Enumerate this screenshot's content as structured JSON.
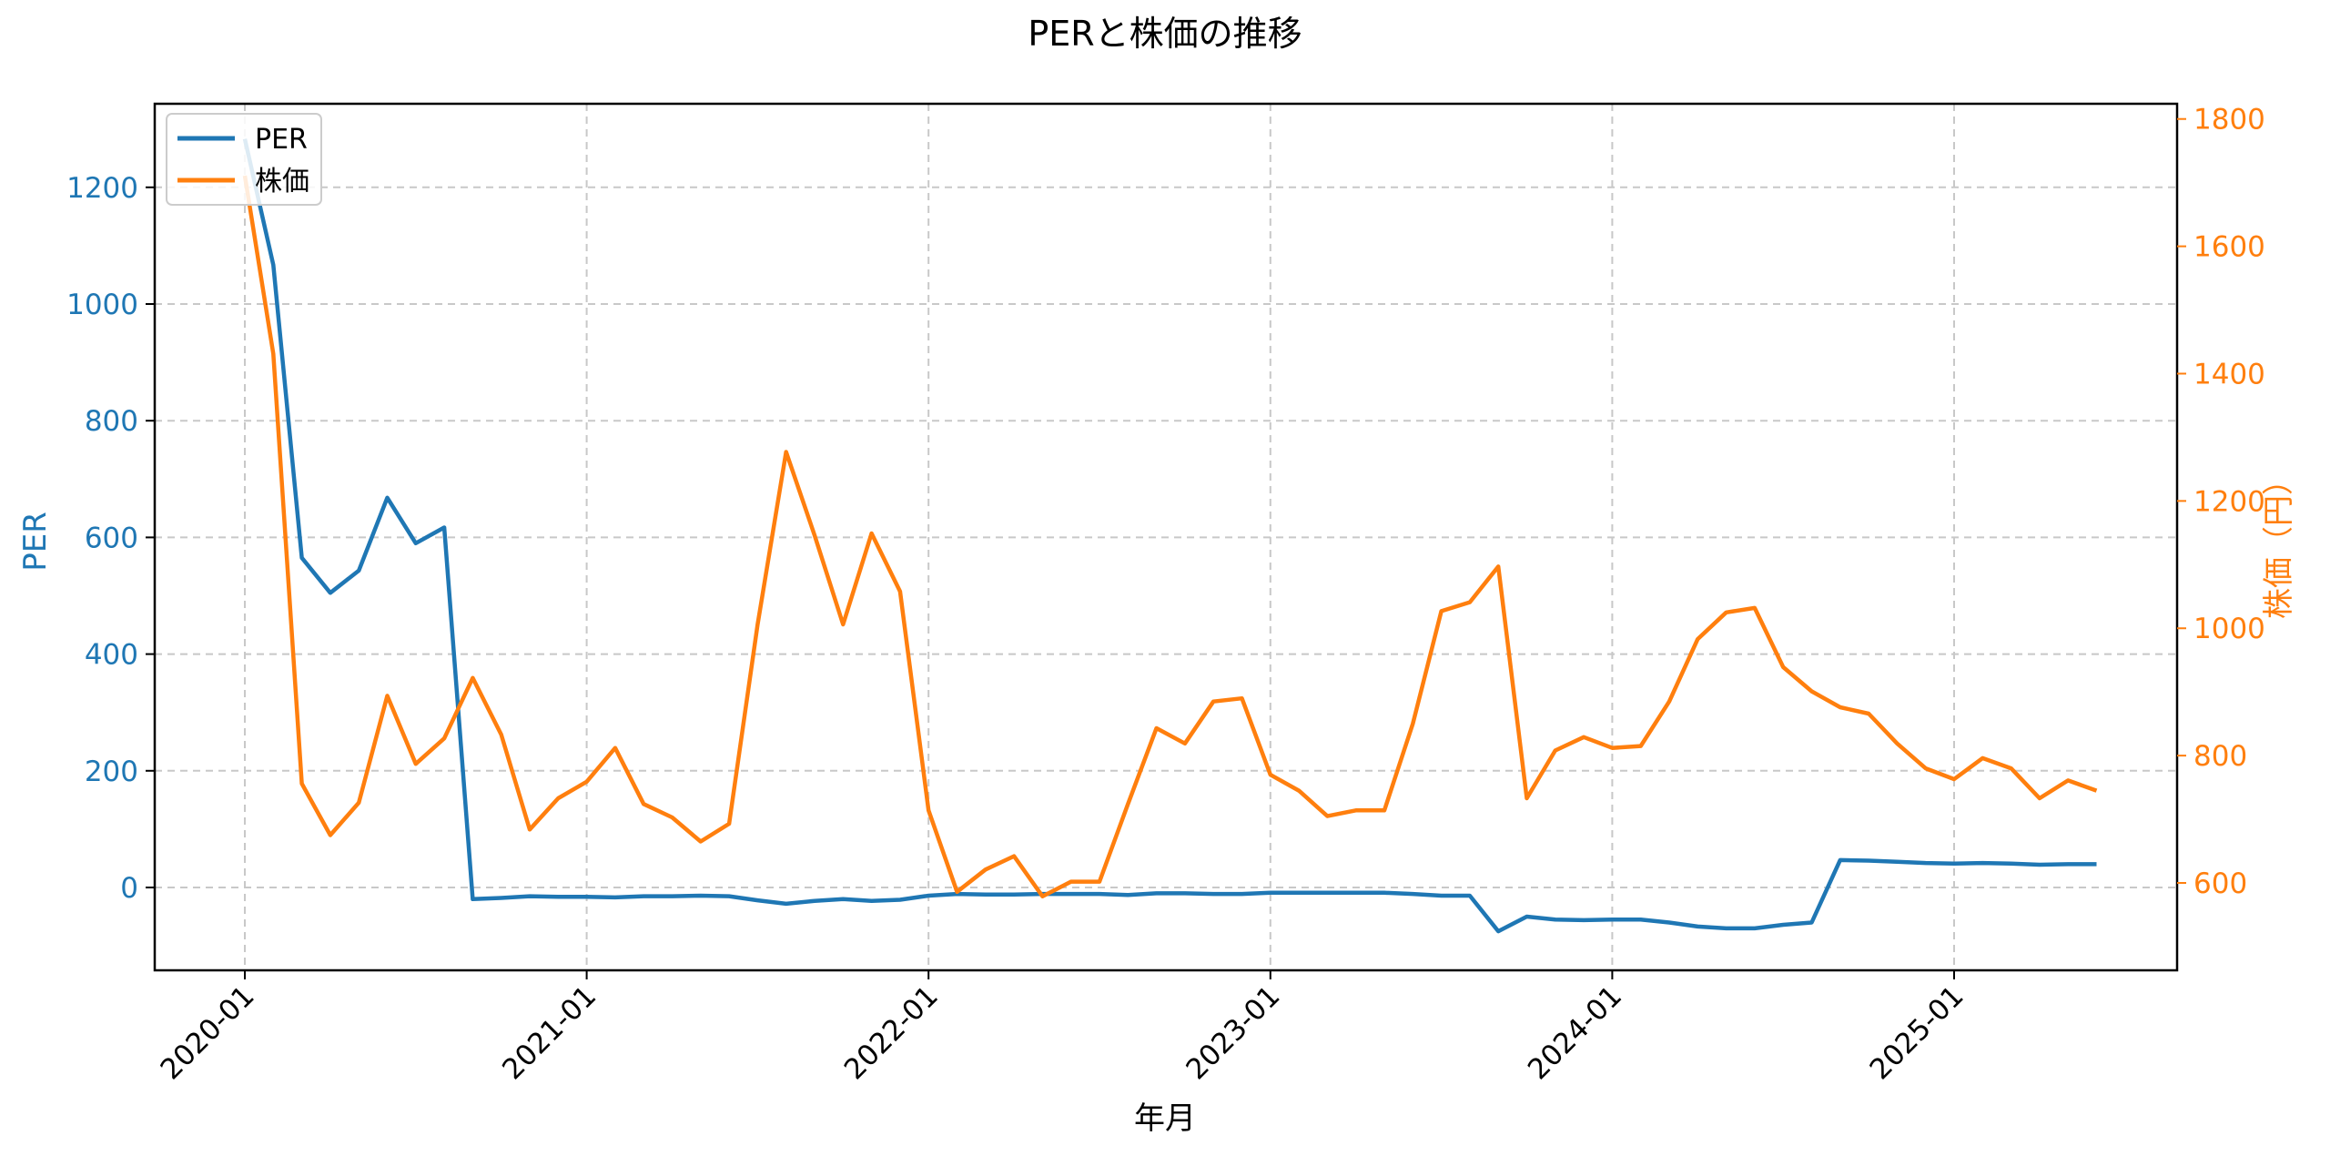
{
  "chart_data": {
    "type": "line",
    "title": "PERと株価の推移",
    "xlabel": "年月",
    "ylabel": "PER",
    "ylabel_right": "株価（円）",
    "x_ticks": [
      "2020-01",
      "2021-01",
      "2022-01",
      "2023-01",
      "2024-01",
      "2025-01"
    ],
    "y_ticks_left": [
      0,
      200,
      400,
      600,
      800,
      1000,
      1200
    ],
    "y_ticks_right": [
      600,
      800,
      1000,
      1200,
      1400,
      1600,
      1800
    ],
    "ylim_left": [
      -143,
      1345
    ],
    "ylim_right": [
      459,
      1830
    ],
    "grid": true,
    "legend_position": "upper left",
    "colors": {
      "PER": "#1f77b4",
      "株価": "#ff7f0e"
    },
    "x": [
      "2020-01",
      "2020-02",
      "2020-03",
      "2020-04",
      "2020-05",
      "2020-06",
      "2020-07",
      "2020-08",
      "2020-09",
      "2020-10",
      "2020-11",
      "2020-12",
      "2021-01",
      "2021-02",
      "2021-03",
      "2021-04",
      "2021-05",
      "2021-06",
      "2021-07",
      "2021-08",
      "2021-09",
      "2021-10",
      "2021-11",
      "2021-12",
      "2022-01",
      "2022-02",
      "2022-03",
      "2022-04",
      "2022-05",
      "2022-06",
      "2022-07",
      "2022-08",
      "2022-09",
      "2022-10",
      "2022-11",
      "2022-12",
      "2023-01",
      "2023-02",
      "2023-03",
      "2023-04",
      "2023-05",
      "2023-06",
      "2023-07",
      "2023-08",
      "2023-09",
      "2023-10",
      "2023-11",
      "2023-12",
      "2024-01",
      "2024-02",
      "2024-03",
      "2024-04",
      "2024-05",
      "2024-06",
      "2024-07",
      "2024-08",
      "2024-09",
      "2024-10",
      "2024-11",
      "2024-12",
      "2025-01",
      "2025-02",
      "2025-03",
      "2025-04",
      "2025-05",
      "2025-06"
    ],
    "series": [
      {
        "name": "PER",
        "axis": "left",
        "values": [
          1283,
          1067,
          565,
          505,
          543,
          668,
          590,
          617,
          -20,
          -18,
          -15,
          -16,
          -16,
          -17,
          -15,
          -15,
          -14,
          -15,
          -22,
          -28,
          -23,
          -20,
          -23,
          -21,
          -14,
          -11,
          -12,
          -12,
          -11,
          -11,
          -11,
          -13,
          -10,
          -10,
          -11,
          -11,
          -9,
          -9,
          -9,
          -9,
          -9,
          -11,
          -14,
          -14,
          -75,
          -50,
          -55,
          -56,
          -55,
          -55,
          -60,
          -67,
          -70,
          -70,
          -64,
          -60,
          47,
          46,
          44,
          42,
          41,
          42,
          41,
          39,
          40,
          40
        ]
      },
      {
        "name": "株価",
        "axis": "right",
        "values": [
          1711,
          1431,
          756,
          675,
          726,
          894,
          787,
          827,
          922,
          833,
          684,
          733,
          759,
          812,
          724,
          703,
          665,
          693,
          1006,
          1277,
          1146,
          1006,
          1149,
          1058,
          714,
          586,
          621,
          642,
          579,
          602,
          602,
          724,
          843,
          819,
          885,
          890,
          770,
          745,
          705,
          714,
          714,
          850,
          1027,
          1041,
          1097,
          733,
          808,
          829,
          812,
          815,
          885,
          983,
          1025,
          1032,
          939,
          901,
          876,
          866,
          819,
          780,
          763,
          796,
          780,
          733,
          761,
          745
        ]
      }
    ]
  }
}
